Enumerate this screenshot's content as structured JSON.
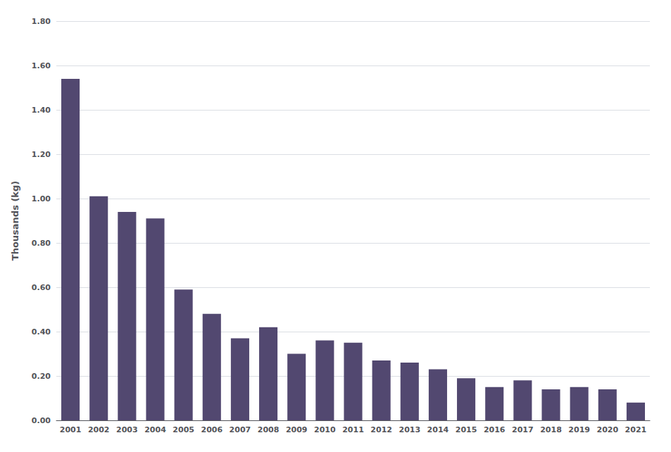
{
  "chart_data": {
    "type": "bar",
    "categories": [
      "2001",
      "2002",
      "2003",
      "2004",
      "2005",
      "2006",
      "2007",
      "2008",
      "2009",
      "2010",
      "2011",
      "2012",
      "2013",
      "2014",
      "2015",
      "2016",
      "2017",
      "2018",
      "2019",
      "2020",
      "2021"
    ],
    "values": [
      1.54,
      1.01,
      0.94,
      0.91,
      0.59,
      0.48,
      0.37,
      0.42,
      0.3,
      0.36,
      0.35,
      0.27,
      0.26,
      0.23,
      0.19,
      0.15,
      0.18,
      0.14,
      0.15,
      0.14,
      0.08
    ],
    "color": "#524870",
    "ylabel": "Thousands (kg)",
    "ylim": [
      0.0,
      1.8
    ],
    "yticks": [
      {
        "value": 0.0,
        "label": "0.00"
      },
      {
        "value": 0.2,
        "label": "0.20"
      },
      {
        "value": 0.4,
        "label": "0.40"
      },
      {
        "value": 0.6,
        "label": "0.60"
      },
      {
        "value": 0.8,
        "label": "0.80"
      },
      {
        "value": 1.0,
        "label": "1.00"
      },
      {
        "value": 1.2,
        "label": "1.20"
      },
      {
        "value": 1.4,
        "label": "1.40"
      },
      {
        "value": 1.6,
        "label": "1.60"
      },
      {
        "value": 1.8,
        "label": "1.80"
      }
    ],
    "grid": true
  }
}
